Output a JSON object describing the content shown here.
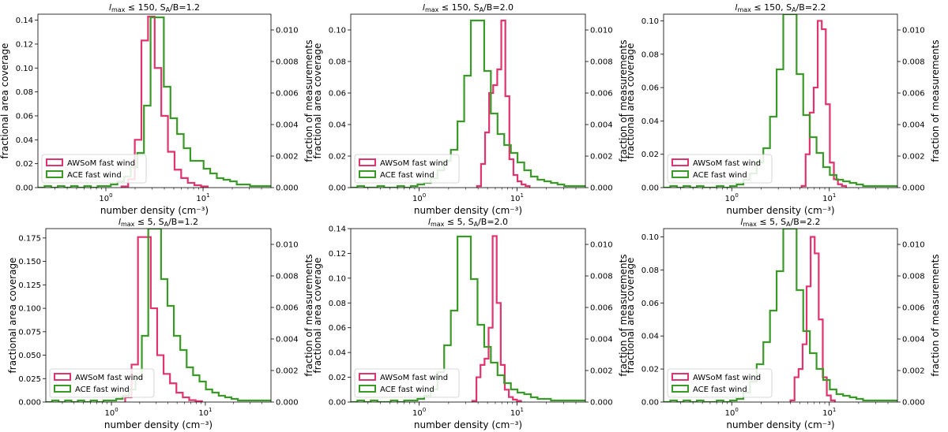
{
  "figure": {
    "xlabel": "number density (cm⁻³)",
    "ylabel_left": "fractional area coverage",
    "ylabel_right": "fraction of measurements",
    "legend": {
      "model": "AWSoM fast wind",
      "obs": "ACE fast wind"
    },
    "colors": {
      "model": "#e0336f",
      "obs": "#3a9a28"
    },
    "xticks": [
      {
        "value": 1,
        "base": "10",
        "exp": "0"
      },
      {
        "value": 10,
        "base": "10",
        "exp": "1"
      }
    ]
  },
  "chart_data": [
    {
      "type": "histogram-step",
      "title": {
        "prefix": "l",
        "sub": "max",
        "rest": "≤ 150, S",
        "sub2": "A",
        "tail": "/B=1.2"
      },
      "xlim": [
        0.2,
        50
      ],
      "xscale": "log",
      "ylim_left": [
        0,
        0.145
      ],
      "yticks_left": [
        "0.00",
        "0.02",
        "0.04",
        "0.06",
        "0.08",
        "0.10",
        "0.12",
        "0.14"
      ],
      "ylim_right": [
        0,
        0.011
      ],
      "yticks_right": [
        "0.000",
        "0.002",
        "0.004",
        "0.006",
        "0.008",
        "0.010"
      ],
      "model_series": {
        "name": "AWSoM fast wind",
        "x_start": 1.45,
        "bin_factor": 1.17,
        "values": [
          0.001,
          0.007,
          0.04,
          0.123,
          0.143,
          0.1,
          0.06,
          0.03,
          0.015,
          0.008,
          0.004,
          0.002,
          0.001
        ]
      },
      "obs_series": {
        "name": "ACE fast wind",
        "x_start": 0.2,
        "bin_factor": 1.17,
        "values": [
          0,
          0.0001,
          0,
          0.0001,
          0,
          0.0001,
          0,
          0.0001,
          0,
          0.0001,
          0.0001,
          0.0002,
          0.0004,
          0.0007,
          0.0013,
          0.0022,
          0.0052,
          0.0108,
          0.0108,
          0.0064,
          0.0044,
          0.0034,
          0.0025,
          0.0017,
          0.0017,
          0.0012,
          0.0009,
          0.0006,
          0.0005,
          0.0004,
          0.0002,
          0.0002,
          0.0001,
          0.0001,
          0.0001,
          0.0001,
          0.0001,
          0.0001,
          0.0001,
          0
        ]
      }
    },
    {
      "type": "histogram-step",
      "title": {
        "prefix": "l",
        "sub": "max",
        "rest": "≤ 150, S",
        "sub2": "A",
        "tail": "/B=2.0"
      },
      "xlim": [
        0.2,
        50
      ],
      "xscale": "log",
      "ylim_left": [
        0,
        0.11
      ],
      "yticks_left": [
        "0.00",
        "0.02",
        "0.04",
        "0.06",
        "0.08",
        "0.10"
      ],
      "ylim_right": [
        0,
        0.011
      ],
      "yticks_right": [
        "0.000",
        "0.002",
        "0.004",
        "0.006",
        "0.008",
        "0.010"
      ],
      "model_series": {
        "name": "AWSoM fast wind",
        "x_start": 3.9,
        "bin_factor": 1.1,
        "values": [
          0.001,
          0.015,
          0.035,
          0.06,
          0.065,
          0.075,
          0.106,
          0.058,
          0.018,
          0.008,
          0.004,
          0.002,
          0.001
        ]
      },
      "obs_series": {
        "name": "ACE fast wind",
        "x_start": 0.2,
        "bin_factor": 1.17,
        "values": [
          0,
          0.0001,
          0,
          0,
          0.0001,
          0,
          0,
          0.0001,
          0,
          0.0001,
          0.0002,
          0.0003,
          0.0006,
          0.0011,
          0.0017,
          0.0024,
          0.0042,
          0.0071,
          0.0106,
          0.0106,
          0.0074,
          0.0047,
          0.0034,
          0.0027,
          0.0022,
          0.0016,
          0.0011,
          0.0007,
          0.0005,
          0.0004,
          0.0003,
          0.0002,
          0.0001,
          0.0001,
          0.0001,
          0.0001,
          0.0001,
          0.0001,
          0.0001,
          0
        ]
      }
    },
    {
      "type": "histogram-step",
      "title": {
        "prefix": "l",
        "sub": "max",
        "rest": "≤ 150, S",
        "sub2": "A",
        "tail": "/B=2.2"
      },
      "xlim": [
        0.2,
        50
      ],
      "xscale": "log",
      "ylim_left": [
        0,
        0.104
      ],
      "yticks_left": [
        "0.00",
        "0.02",
        "0.04",
        "0.06",
        "0.08",
        "0.10"
      ],
      "ylim_right": [
        0,
        0.011
      ],
      "yticks_right": [
        "0.000",
        "0.002",
        "0.004",
        "0.006",
        "0.008",
        "0.010"
      ],
      "model_series": {
        "name": "AWSoM fast wind",
        "x_start": 5.2,
        "bin_factor": 1.1,
        "values": [
          0.001,
          0.02,
          0.045,
          0.06,
          0.1,
          0.095,
          0.05,
          0.015,
          0.005,
          0.002,
          0.001
        ]
      },
      "obs_series": {
        "name": "ACE fast wind",
        "x_start": 0.2,
        "bin_factor": 1.17,
        "values": [
          0,
          0.0001,
          0,
          0.0001,
          0,
          0.0001,
          0,
          0,
          0.0001,
          0,
          0.0001,
          0.0002,
          0.0005,
          0.0009,
          0.0016,
          0.0025,
          0.0045,
          0.0075,
          0.011,
          0.011,
          0.0072,
          0.0046,
          0.0032,
          0.0022,
          0.0013,
          0.0008,
          0.0005,
          0.0004,
          0.0003,
          0.0002,
          0.0001,
          0.0001,
          0.0001,
          0.0001,
          0.0001,
          0.0001,
          0.0001,
          0.0001,
          0.0001,
          0
        ]
      }
    },
    {
      "type": "histogram-step",
      "title": {
        "prefix": "l",
        "sub": "max",
        "rest": "≤ 5, S",
        "sub2": "A",
        "tail": "/B=1.2"
      },
      "xlim": [
        0.2,
        50
      ],
      "xscale": "log",
      "ylim_left": [
        0,
        0.185
      ],
      "yticks_left": [
        "0.000",
        "0.025",
        "0.050",
        "0.075",
        "0.100",
        "0.125",
        "0.150",
        "0.175"
      ],
      "ylim_right": [
        0,
        0.011
      ],
      "yticks_right": [
        "0.000",
        "0.002",
        "0.004",
        "0.006",
        "0.008",
        "0.010"
      ],
      "model_series": {
        "name": "AWSoM fast wind",
        "x_start": 1.4,
        "bin_factor": 1.17,
        "values": [
          0.005,
          0.04,
          0.176,
          0.176,
          0.1,
          0.05,
          0.03,
          0.02,
          0.01,
          0.005,
          0.002,
          0.001
        ]
      },
      "obs_series": {
        "name": "ACE fast wind",
        "x_start": 0.2,
        "bin_factor": 1.17,
        "values": [
          0,
          0.0001,
          0,
          0.0001,
          0,
          0.0001,
          0,
          0.0001,
          0,
          0.0001,
          0.0001,
          0.0002,
          0.0004,
          0.0008,
          0.0015,
          0.0042,
          0.011,
          0.011,
          0.0078,
          0.0061,
          0.0042,
          0.0033,
          0.0022,
          0.0017,
          0.0013,
          0.0008,
          0.0006,
          0.0004,
          0.0003,
          0.0002,
          0.0001,
          0.0001,
          0.0001,
          0.0001,
          0.0001,
          0.0001,
          0.0001,
          0.0001,
          0.0001,
          0
        ]
      }
    },
    {
      "type": "histogram-step",
      "title": {
        "prefix": "l",
        "sub": "max",
        "rest": "≤ 5, S",
        "sub2": "A",
        "tail": "/B=2.0"
      },
      "xlim": [
        0.2,
        50
      ],
      "xscale": "log",
      "ylim_left": [
        0,
        0.14
      ],
      "yticks_left": [
        "0.00",
        "0.02",
        "0.04",
        "0.06",
        "0.08",
        "0.10",
        "0.12",
        "0.14"
      ],
      "ylim_right": [
        0,
        0.011
      ],
      "yticks_right": [
        "0.000",
        "0.002",
        "0.004",
        "0.006",
        "0.008",
        "0.010"
      ],
      "model_series": {
        "name": "AWSoM fast wind",
        "x_start": 3.5,
        "bin_factor": 1.1,
        "values": [
          0.001,
          0.02,
          0.03,
          0.035,
          0.06,
          0.134,
          0.08,
          0.03,
          0.01,
          0.004,
          0.002,
          0.001
        ]
      },
      "obs_series": {
        "name": "ACE fast wind",
        "x_start": 0.2,
        "bin_factor": 1.17,
        "values": [
          0,
          0.0001,
          0,
          0.0001,
          0,
          0,
          0.0001,
          0,
          0.0001,
          0.0001,
          0.0002,
          0.0004,
          0.0008,
          0.0019,
          0.0036,
          0.0058,
          0.0105,
          0.0105,
          0.0078,
          0.0049,
          0.0035,
          0.0025,
          0.0017,
          0.0012,
          0.0008,
          0.0006,
          0.0005,
          0.0003,
          0.0002,
          0.0002,
          0.0001,
          0.0001,
          0.0001,
          0.0001,
          0.0001,
          0.0001,
          0.0001,
          0.0001,
          0.0001,
          0
        ]
      }
    },
    {
      "type": "histogram-step",
      "title": {
        "prefix": "l",
        "sub": "max",
        "rest": "≤ 5, S",
        "sub2": "A",
        "tail": "/B=2.2"
      },
      "xlim": [
        0.2,
        50
      ],
      "xscale": "log",
      "ylim_left": [
        0,
        0.105
      ],
      "yticks_left": [
        "0.00",
        "0.02",
        "0.04",
        "0.06",
        "0.08",
        "0.10"
      ],
      "ylim_right": [
        0,
        0.011
      ],
      "yticks_right": [
        "0.000",
        "0.002",
        "0.004",
        "0.006",
        "0.008",
        "0.010"
      ],
      "model_series": {
        "name": "AWSoM fast wind",
        "x_start": 4.0,
        "bin_factor": 1.1,
        "values": [
          0.001,
          0.015,
          0.02,
          0.035,
          0.07,
          0.1,
          0.09,
          0.05,
          0.015,
          0.004,
          0.001
        ]
      },
      "obs_series": {
        "name": "ACE fast wind",
        "x_start": 0.2,
        "bin_factor": 1.17,
        "values": [
          0,
          0.0001,
          0,
          0.0001,
          0,
          0.0001,
          0,
          0,
          0.0001,
          0,
          0.0001,
          0.0002,
          0.0006,
          0.0013,
          0.0024,
          0.0038,
          0.0058,
          0.0083,
          0.011,
          0.011,
          0.0071,
          0.0045,
          0.0031,
          0.0021,
          0.0014,
          0.0008,
          0.0005,
          0.0004,
          0.0003,
          0.0002,
          0.0001,
          0.0001,
          0.0001,
          0.0001,
          0.0001,
          0.0001,
          0.0001,
          0.0001,
          0.0001,
          0
        ]
      }
    }
  ]
}
